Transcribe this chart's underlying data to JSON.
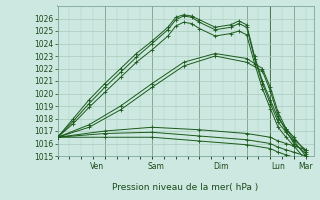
{
  "bg_color": "#cde8e0",
  "grid_color": "#aaccbe",
  "line_color": "#1a5a1a",
  "title": "Pression niveau de la mer( hPa )",
  "ylabel_ticks": [
    1015,
    1016,
    1017,
    1018,
    1019,
    1020,
    1021,
    1022,
    1023,
    1024,
    1025,
    1026
  ],
  "ylim": [
    1015,
    1027
  ],
  "xlim": [
    0,
    130
  ],
  "x_day_ticks": [
    24,
    72,
    108,
    120,
    130
  ],
  "x_day_labels_data": [
    {
      "label": "Ven",
      "x": 20
    },
    {
      "label": "Sam",
      "x": 50
    },
    {
      "label": "Dim",
      "x": 83
    },
    {
      "label": "Lun",
      "x": 112
    },
    {
      "label": "Mar",
      "x": 126
    }
  ],
  "x_minor_step": 6,
  "series": [
    {
      "points": [
        [
          0,
          1016.5
        ],
        [
          8,
          1018.0
        ],
        [
          16,
          1019.5
        ],
        [
          24,
          1020.8
        ],
        [
          32,
          1022.0
        ],
        [
          40,
          1023.2
        ],
        [
          48,
          1024.2
        ],
        [
          56,
          1025.3
        ],
        [
          60,
          1026.1
        ],
        [
          64,
          1026.3
        ],
        [
          68,
          1026.2
        ],
        [
          72,
          1025.9
        ],
        [
          80,
          1025.3
        ],
        [
          88,
          1025.5
        ],
        [
          92,
          1025.8
        ],
        [
          96,
          1025.5
        ],
        [
          100,
          1023.0
        ],
        [
          104,
          1021.0
        ],
        [
          108,
          1019.5
        ],
        [
          112,
          1018.0
        ],
        [
          116,
          1017.2
        ],
        [
          120,
          1016.5
        ],
        [
          126,
          1015.3
        ]
      ]
    },
    {
      "points": [
        [
          0,
          1016.5
        ],
        [
          8,
          1017.8
        ],
        [
          16,
          1019.2
        ],
        [
          24,
          1020.5
        ],
        [
          32,
          1021.7
        ],
        [
          40,
          1022.9
        ],
        [
          48,
          1024.0
        ],
        [
          56,
          1025.1
        ],
        [
          60,
          1025.9
        ],
        [
          64,
          1026.2
        ],
        [
          68,
          1026.1
        ],
        [
          72,
          1025.7
        ],
        [
          80,
          1025.1
        ],
        [
          88,
          1025.3
        ],
        [
          92,
          1025.6
        ],
        [
          96,
          1025.3
        ],
        [
          100,
          1022.8
        ],
        [
          104,
          1020.8
        ],
        [
          108,
          1019.2
        ],
        [
          112,
          1017.7
        ],
        [
          116,
          1016.9
        ],
        [
          120,
          1016.2
        ],
        [
          126,
          1015.0
        ]
      ]
    },
    {
      "points": [
        [
          0,
          1016.5
        ],
        [
          8,
          1017.6
        ],
        [
          16,
          1018.9
        ],
        [
          24,
          1020.1
        ],
        [
          32,
          1021.3
        ],
        [
          40,
          1022.5
        ],
        [
          48,
          1023.5
        ],
        [
          56,
          1024.6
        ],
        [
          60,
          1025.4
        ],
        [
          64,
          1025.7
        ],
        [
          68,
          1025.6
        ],
        [
          72,
          1025.2
        ],
        [
          80,
          1024.6
        ],
        [
          88,
          1024.8
        ],
        [
          92,
          1025.0
        ],
        [
          96,
          1024.7
        ],
        [
          100,
          1022.4
        ],
        [
          104,
          1020.4
        ],
        [
          108,
          1018.8
        ],
        [
          112,
          1017.3
        ],
        [
          116,
          1016.5
        ],
        [
          120,
          1015.8
        ],
        [
          126,
          1014.7
        ]
      ]
    },
    {
      "points": [
        [
          0,
          1016.5
        ],
        [
          16,
          1017.5
        ],
        [
          32,
          1019.0
        ],
        [
          48,
          1020.8
        ],
        [
          64,
          1022.5
        ],
        [
          80,
          1023.2
        ],
        [
          96,
          1022.8
        ],
        [
          104,
          1022.0
        ],
        [
          108,
          1020.5
        ],
        [
          112,
          1018.5
        ],
        [
          116,
          1017.2
        ],
        [
          120,
          1016.3
        ],
        [
          126,
          1015.5
        ]
      ]
    },
    {
      "points": [
        [
          0,
          1016.5
        ],
        [
          16,
          1017.3
        ],
        [
          32,
          1018.7
        ],
        [
          48,
          1020.5
        ],
        [
          64,
          1022.2
        ],
        [
          80,
          1023.0
        ],
        [
          96,
          1022.5
        ],
        [
          104,
          1021.8
        ],
        [
          108,
          1020.2
        ],
        [
          112,
          1018.2
        ],
        [
          116,
          1017.0
        ],
        [
          120,
          1016.0
        ],
        [
          126,
          1015.2
        ]
      ]
    },
    {
      "points": [
        [
          0,
          1016.5
        ],
        [
          24,
          1017.0
        ],
        [
          48,
          1017.3
        ],
        [
          72,
          1017.1
        ],
        [
          96,
          1016.8
        ],
        [
          108,
          1016.5
        ],
        [
          112,
          1016.2
        ],
        [
          116,
          1016.0
        ],
        [
          120,
          1015.8
        ],
        [
          126,
          1015.5
        ]
      ]
    },
    {
      "points": [
        [
          0,
          1016.5
        ],
        [
          24,
          1016.8
        ],
        [
          48,
          1016.9
        ],
        [
          72,
          1016.6
        ],
        [
          96,
          1016.3
        ],
        [
          108,
          1016.0
        ],
        [
          112,
          1015.7
        ],
        [
          116,
          1015.5
        ],
        [
          120,
          1015.3
        ],
        [
          126,
          1015.0
        ]
      ]
    },
    {
      "points": [
        [
          0,
          1016.5
        ],
        [
          24,
          1016.5
        ],
        [
          48,
          1016.5
        ],
        [
          72,
          1016.2
        ],
        [
          96,
          1015.9
        ],
        [
          108,
          1015.6
        ],
        [
          112,
          1015.3
        ],
        [
          116,
          1015.1
        ],
        [
          120,
          1014.9
        ],
        [
          126,
          1014.6
        ]
      ]
    }
  ]
}
